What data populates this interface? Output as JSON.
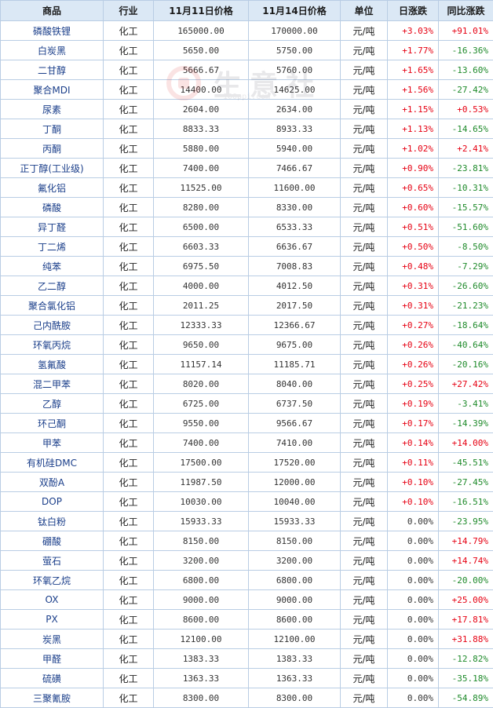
{
  "headers": [
    "商品",
    "行业",
    "11月11日价格",
    "11月14日价格",
    "单位",
    "日涨跌",
    "同比涨跌"
  ],
  "watermark": {
    "text": "生意社",
    "url": "100ppi.com"
  },
  "rows": [
    {
      "name": "磷酸铁锂",
      "industry": "化工",
      "price1": "165000.00",
      "price2": "170000.00",
      "unit": "元/吨",
      "daily": "+3.03%",
      "yoy": "+91.01%"
    },
    {
      "name": "白炭黑",
      "industry": "化工",
      "price1": "5650.00",
      "price2": "5750.00",
      "unit": "元/吨",
      "daily": "+1.77%",
      "yoy": "-16.36%"
    },
    {
      "name": "二甘醇",
      "industry": "化工",
      "price1": "5666.67",
      "price2": "5760.00",
      "unit": "元/吨",
      "daily": "+1.65%",
      "yoy": "-13.60%"
    },
    {
      "name": "聚合MDI",
      "industry": "化工",
      "price1": "14400.00",
      "price2": "14625.00",
      "unit": "元/吨",
      "daily": "+1.56%",
      "yoy": "-27.42%"
    },
    {
      "name": "尿素",
      "industry": "化工",
      "price1": "2604.00",
      "price2": "2634.00",
      "unit": "元/吨",
      "daily": "+1.15%",
      "yoy": "+0.53%"
    },
    {
      "name": "丁酮",
      "industry": "化工",
      "price1": "8833.33",
      "price2": "8933.33",
      "unit": "元/吨",
      "daily": "+1.13%",
      "yoy": "-14.65%"
    },
    {
      "name": "丙酮",
      "industry": "化工",
      "price1": "5880.00",
      "price2": "5940.00",
      "unit": "元/吨",
      "daily": "+1.02%",
      "yoy": "+2.41%"
    },
    {
      "name": "正丁醇(工业级)",
      "industry": "化工",
      "price1": "7400.00",
      "price2": "7466.67",
      "unit": "元/吨",
      "daily": "+0.90%",
      "yoy": "-23.81%"
    },
    {
      "name": "氟化铝",
      "industry": "化工",
      "price1": "11525.00",
      "price2": "11600.00",
      "unit": "元/吨",
      "daily": "+0.65%",
      "yoy": "-10.31%"
    },
    {
      "name": "磷酸",
      "industry": "化工",
      "price1": "8280.00",
      "price2": "8330.00",
      "unit": "元/吨",
      "daily": "+0.60%",
      "yoy": "-15.57%"
    },
    {
      "name": "异丁醛",
      "industry": "化工",
      "price1": "6500.00",
      "price2": "6533.33",
      "unit": "元/吨",
      "daily": "+0.51%",
      "yoy": "-51.60%"
    },
    {
      "name": "丁二烯",
      "industry": "化工",
      "price1": "6603.33",
      "price2": "6636.67",
      "unit": "元/吨",
      "daily": "+0.50%",
      "yoy": "-8.50%"
    },
    {
      "name": "纯苯",
      "industry": "化工",
      "price1": "6975.50",
      "price2": "7008.83",
      "unit": "元/吨",
      "daily": "+0.48%",
      "yoy": "-7.29%"
    },
    {
      "name": "乙二醇",
      "industry": "化工",
      "price1": "4000.00",
      "price2": "4012.50",
      "unit": "元/吨",
      "daily": "+0.31%",
      "yoy": "-26.60%"
    },
    {
      "name": "聚合氯化铝",
      "industry": "化工",
      "price1": "2011.25",
      "price2": "2017.50",
      "unit": "元/吨",
      "daily": "+0.31%",
      "yoy": "-21.23%"
    },
    {
      "name": "己内酰胺",
      "industry": "化工",
      "price1": "12333.33",
      "price2": "12366.67",
      "unit": "元/吨",
      "daily": "+0.27%",
      "yoy": "-18.64%"
    },
    {
      "name": "环氧丙烷",
      "industry": "化工",
      "price1": "9650.00",
      "price2": "9675.00",
      "unit": "元/吨",
      "daily": "+0.26%",
      "yoy": "-40.64%"
    },
    {
      "name": "氢氟酸",
      "industry": "化工",
      "price1": "11157.14",
      "price2": "11185.71",
      "unit": "元/吨",
      "daily": "+0.26%",
      "yoy": "-20.16%"
    },
    {
      "name": "混二甲苯",
      "industry": "化工",
      "price1": "8020.00",
      "price2": "8040.00",
      "unit": "元/吨",
      "daily": "+0.25%",
      "yoy": "+27.42%"
    },
    {
      "name": "乙醇",
      "industry": "化工",
      "price1": "6725.00",
      "price2": "6737.50",
      "unit": "元/吨",
      "daily": "+0.19%",
      "yoy": "-3.41%"
    },
    {
      "name": "环己酮",
      "industry": "化工",
      "price1": "9550.00",
      "price2": "9566.67",
      "unit": "元/吨",
      "daily": "+0.17%",
      "yoy": "-14.39%"
    },
    {
      "name": "甲苯",
      "industry": "化工",
      "price1": "7400.00",
      "price2": "7410.00",
      "unit": "元/吨",
      "daily": "+0.14%",
      "yoy": "+14.00%"
    },
    {
      "name": "有机硅DMC",
      "industry": "化工",
      "price1": "17500.00",
      "price2": "17520.00",
      "unit": "元/吨",
      "daily": "+0.11%",
      "yoy": "-45.51%"
    },
    {
      "name": "双酚A",
      "industry": "化工",
      "price1": "11987.50",
      "price2": "12000.00",
      "unit": "元/吨",
      "daily": "+0.10%",
      "yoy": "-27.45%"
    },
    {
      "name": "DOP",
      "industry": "化工",
      "price1": "10030.00",
      "price2": "10040.00",
      "unit": "元/吨",
      "daily": "+0.10%",
      "yoy": "-16.51%"
    },
    {
      "name": "钛白粉",
      "industry": "化工",
      "price1": "15933.33",
      "price2": "15933.33",
      "unit": "元/吨",
      "daily": "0.00%",
      "yoy": "-23.95%"
    },
    {
      "name": "硼酸",
      "industry": "化工",
      "price1": "8150.00",
      "price2": "8150.00",
      "unit": "元/吨",
      "daily": "0.00%",
      "yoy": "+14.79%"
    },
    {
      "name": "萤石",
      "industry": "化工",
      "price1": "3200.00",
      "price2": "3200.00",
      "unit": "元/吨",
      "daily": "0.00%",
      "yoy": "+14.74%"
    },
    {
      "name": "环氧乙烷",
      "industry": "化工",
      "price1": "6800.00",
      "price2": "6800.00",
      "unit": "元/吨",
      "daily": "0.00%",
      "yoy": "-20.00%"
    },
    {
      "name": "OX",
      "industry": "化工",
      "price1": "9000.00",
      "price2": "9000.00",
      "unit": "元/吨",
      "daily": "0.00%",
      "yoy": "+25.00%"
    },
    {
      "name": "PX",
      "industry": "化工",
      "price1": "8600.00",
      "price2": "8600.00",
      "unit": "元/吨",
      "daily": "0.00%",
      "yoy": "+17.81%"
    },
    {
      "name": "炭黑",
      "industry": "化工",
      "price1": "12100.00",
      "price2": "12100.00",
      "unit": "元/吨",
      "daily": "0.00%",
      "yoy": "+31.88%"
    },
    {
      "name": "甲醛",
      "industry": "化工",
      "price1": "1383.33",
      "price2": "1383.33",
      "unit": "元/吨",
      "daily": "0.00%",
      "yoy": "-12.82%"
    },
    {
      "name": "硫磺",
      "industry": "化工",
      "price1": "1363.33",
      "price2": "1363.33",
      "unit": "元/吨",
      "daily": "0.00%",
      "yoy": "-35.18%"
    },
    {
      "name": "三聚氰胺",
      "industry": "化工",
      "price1": "8300.00",
      "price2": "8300.00",
      "unit": "元/吨",
      "daily": "0.00%",
      "yoy": "-54.89%"
    }
  ]
}
